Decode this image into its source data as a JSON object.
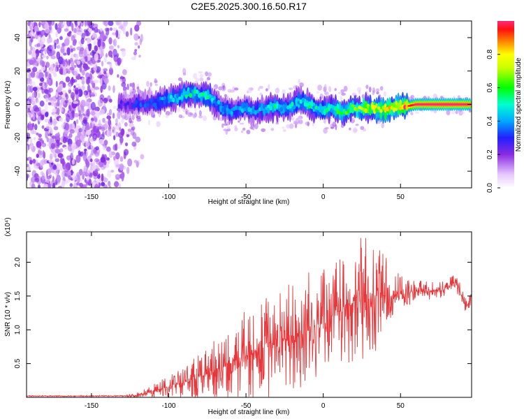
{
  "title": "C2E5.2025.300.16.50.R17",
  "chart_data": [
    {
      "type": "heatmap",
      "title": "C2E5.2025.300.16.50.R17",
      "xlabel": "Height of straight line (km)",
      "ylabel": "Frequency (Hz)",
      "xlim": [
        -192,
        96
      ],
      "ylim": [
        -50,
        50
      ],
      "x_ticks": [
        -150,
        -100,
        -50,
        0,
        50
      ],
      "y_ticks": [
        -40,
        -20,
        0,
        20,
        40
      ],
      "colorbar": {
        "label": "Normalized spectral amplitude",
        "range": [
          0,
          1
        ],
        "ticks": [
          "0.0",
          "0.2",
          "0.4",
          "0.6",
          "0.8"
        ],
        "tick_values": [
          0.0,
          0.2,
          0.4,
          0.6,
          0.8
        ]
      },
      "ridge": {
        "x": [
          -130,
          -120,
          -110,
          -100,
          -90,
          -85,
          -80,
          -75,
          -70,
          -65,
          -60,
          -55,
          -50,
          -45,
          -40,
          -35,
          -30,
          -25,
          -20,
          -15,
          -10,
          -5,
          0,
          5,
          10,
          15,
          20,
          25,
          30,
          35,
          40,
          45,
          50,
          55,
          60,
          70,
          80,
          90,
          96
        ],
        "freq": [
          0,
          0,
          1,
          3,
          6,
          7,
          6,
          5,
          2,
          -2,
          -4,
          -3,
          -2,
          -4,
          -3,
          -2,
          -1,
          -3,
          -1,
          2,
          1,
          -3,
          -3,
          -2,
          -4,
          -4,
          -2,
          -3,
          -2,
          -3,
          -3,
          -2,
          -1,
          -1,
          0,
          0,
          0,
          0,
          0
        ],
        "amp": [
          0.25,
          0.3,
          0.35,
          0.42,
          0.48,
          0.5,
          0.5,
          0.52,
          0.45,
          0.4,
          0.4,
          0.4,
          0.42,
          0.4,
          0.42,
          0.45,
          0.5,
          0.45,
          0.5,
          0.45,
          0.5,
          0.48,
          0.55,
          0.5,
          0.6,
          0.58,
          0.62,
          0.66,
          0.72,
          0.75,
          0.8,
          0.82,
          0.85,
          0.88,
          0.95,
          0.96,
          0.97,
          0.96,
          0.95
        ]
      }
    },
    {
      "type": "line",
      "xlabel": "Height of straight line (km)",
      "ylabel": "SNR (10 * v/v)",
      "y_scale_label": "(x10⁴)",
      "xlim": [
        -192,
        96
      ],
      "ylim": [
        0,
        2.45
      ],
      "x_ticks": [
        -150,
        -100,
        -50,
        0,
        50
      ],
      "y_ticks": [
        0.5,
        1.0,
        1.5,
        2.0
      ],
      "color": "#e8373a",
      "envelope": {
        "x": [
          -192,
          -130,
          -120,
          -115,
          -110,
          -100,
          -90,
          -80,
          -70,
          -60,
          -50,
          -40,
          -30,
          -20,
          -10,
          0,
          5,
          10,
          20,
          30,
          35,
          40,
          50,
          60,
          70,
          80,
          85,
          88,
          90,
          93,
          96
        ],
        "center": [
          0.02,
          0.02,
          0.03,
          0.06,
          0.1,
          0.16,
          0.22,
          0.3,
          0.4,
          0.5,
          0.62,
          0.72,
          0.8,
          0.9,
          1.0,
          1.12,
          1.2,
          1.25,
          1.4,
          1.5,
          1.52,
          1.5,
          1.52,
          1.57,
          1.58,
          1.6,
          1.72,
          1.62,
          1.45,
          1.35,
          1.5
        ],
        "spread": [
          0.005,
          0.008,
          0.03,
          0.05,
          0.08,
          0.12,
          0.18,
          0.25,
          0.32,
          0.4,
          0.5,
          0.55,
          0.55,
          0.6,
          0.62,
          0.55,
          0.55,
          0.6,
          0.62,
          0.7,
          0.65,
          0.45,
          0.2,
          0.12,
          0.1,
          0.08,
          0.1,
          0.1,
          0.1,
          0.08,
          0.06
        ]
      }
    }
  ]
}
